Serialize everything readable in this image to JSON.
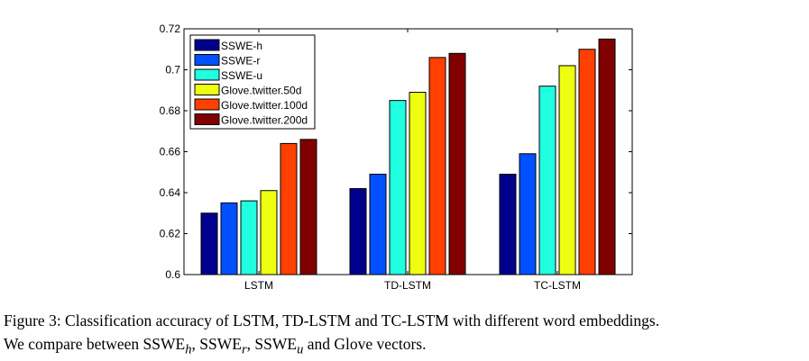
{
  "chart_data": {
    "type": "bar",
    "title": "",
    "xlabel": "",
    "ylabel": "",
    "categories": [
      "LSTM",
      "TD-LSTM",
      "TC-LSTM"
    ],
    "ylim": [
      0.6,
      0.72
    ],
    "yticks": [
      "0.6",
      "0.62",
      "0.64",
      "0.66",
      "0.68",
      "0.7",
      "0.72"
    ],
    "legend_position": "top-left",
    "grid": false,
    "series": [
      {
        "name": "SSWE-h",
        "color": "#00008f",
        "values": [
          0.63,
          0.642,
          0.649
        ]
      },
      {
        "name": "SSWE-r",
        "color": "#0050ff",
        "values": [
          0.635,
          0.649,
          0.659
        ]
      },
      {
        "name": "SSWE-u",
        "color": "#20ffdf",
        "values": [
          0.636,
          0.685,
          0.692
        ]
      },
      {
        "name": "Glove.twitter.50d",
        "color": "#efff10",
        "values": [
          0.641,
          0.689,
          0.702
        ]
      },
      {
        "name": "Glove.twitter.100d",
        "color": "#ff4000",
        "values": [
          0.664,
          0.706,
          0.71
        ]
      },
      {
        "name": "Glove.twitter.200d",
        "color": "#800000",
        "values": [
          0.666,
          0.708,
          0.715
        ]
      }
    ]
  },
  "caption": {
    "line1": "Figure 3: Classification accuracy of LSTM, TD-LSTM and TC-LSTM with different word embeddings.",
    "line2_prefix": "We compare between SSWE",
    "sub_h": "h",
    "sep1": ", SSWE",
    "sub_r": "r",
    "sep2": ", SSWE",
    "sub_u": "u",
    "line2_suffix": " and Glove vectors."
  }
}
